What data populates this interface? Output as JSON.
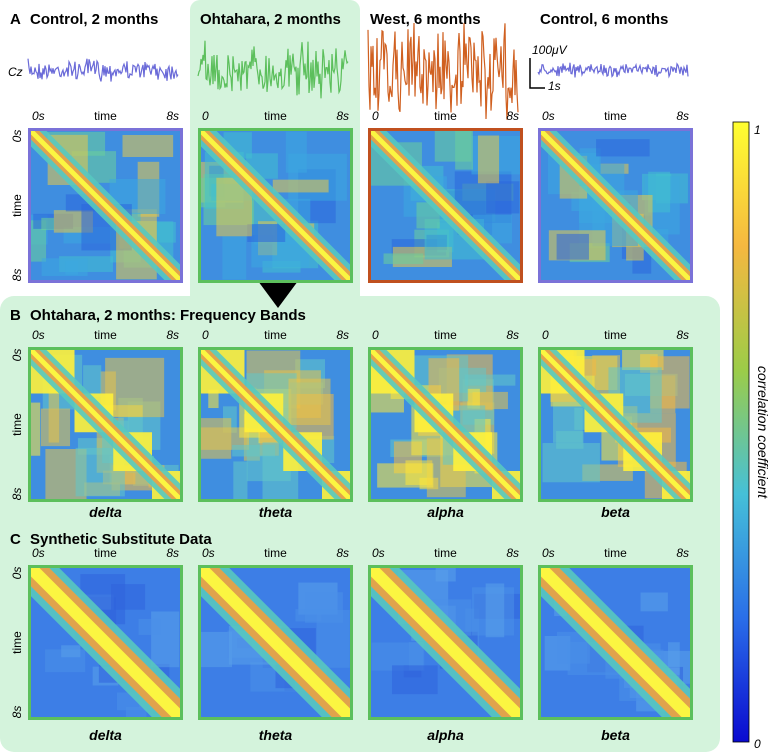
{
  "panel_a": {
    "label": "A",
    "channel": "Cz",
    "scale_amplitude": "100μV",
    "scale_time": "1s",
    "columns": [
      {
        "title": "Control, 2 months",
        "x_start": "0s",
        "x_mid": "time",
        "x_end": "8s"
      },
      {
        "title": "Ohtahara, 2 months",
        "x_start": "0",
        "x_mid": "time",
        "x_end": "8s"
      },
      {
        "title": "West, 6 months",
        "x_start": "0",
        "x_mid": "time",
        "x_end": "8s"
      },
      {
        "title": "Control, 6 months",
        "x_start": "0s",
        "x_mid": "time",
        "x_end": "8s"
      }
    ],
    "y_axis": {
      "start": "0s",
      "mid": "time",
      "end": "8s"
    }
  },
  "panel_b": {
    "label": "B",
    "title": "Ohtahara, 2 months: Frequency Bands",
    "columns": [
      {
        "name": "delta",
        "x_start": "0s",
        "x_mid": "time",
        "x_end": "8s"
      },
      {
        "name": "theta",
        "x_start": "0",
        "x_mid": "time",
        "x_end": "8s"
      },
      {
        "name": "alpha",
        "x_start": "0",
        "x_mid": "time",
        "x_end": "8s"
      },
      {
        "name": "beta",
        "x_start": "0",
        "x_mid": "time",
        "x_end": "8s"
      }
    ],
    "y_axis": {
      "start": "0s",
      "mid": "time",
      "end": "8s"
    }
  },
  "panel_c": {
    "label": "C",
    "title": "Synthetic Substitute Data",
    "columns": [
      {
        "name": "delta",
        "x_start": "0s",
        "x_mid": "time",
        "x_end": "8s"
      },
      {
        "name": "theta",
        "x_start": "0s",
        "x_mid": "time",
        "x_end": "8s"
      },
      {
        "name": "alpha",
        "x_start": "0s",
        "x_mid": "time",
        "x_end": "8s"
      },
      {
        "name": "beta",
        "x_start": "0s",
        "x_mid": "time",
        "x_end": "8s"
      }
    ],
    "y_axis": {
      "start": "0s",
      "mid": "time",
      "end": "8s"
    }
  },
  "colorbar": {
    "max": "1",
    "min": "0",
    "label": "correlation coefficient"
  }
}
